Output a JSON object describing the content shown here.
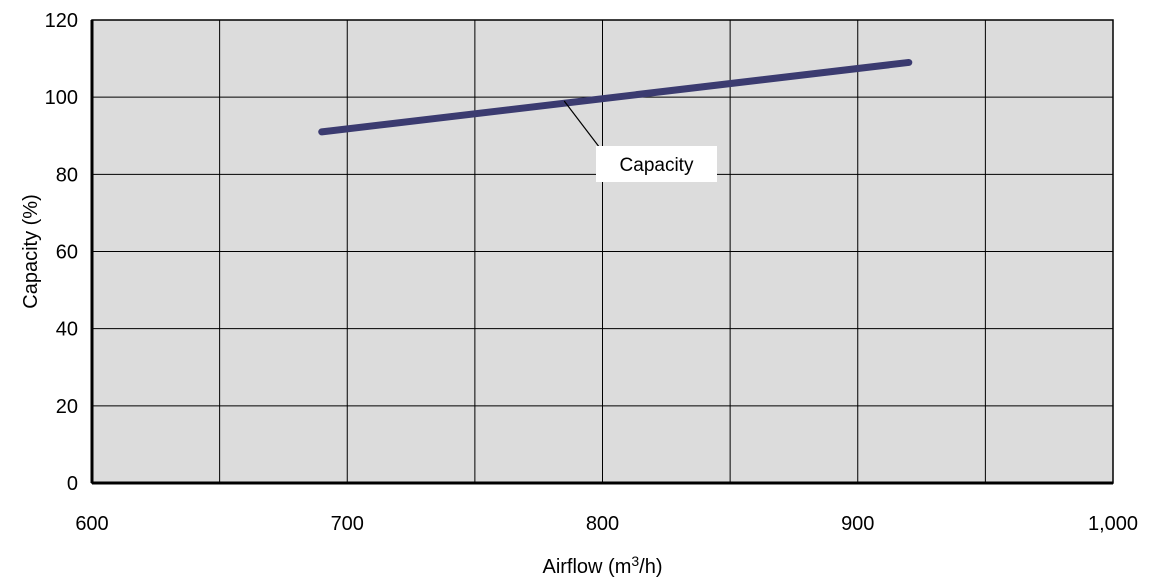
{
  "chart_data": {
    "type": "line",
    "title": "",
    "xlabel_main": "Airflow (m",
    "xlabel_sup": "3",
    "xlabel_tail": "/h)",
    "ylabel": "Capacity (%)",
    "xlim": [
      600,
      1000
    ],
    "ylim": [
      0,
      120
    ],
    "x_ticks": [
      600,
      700,
      800,
      900,
      1000
    ],
    "x_tick_labels": [
      "600",
      "700",
      "800",
      "900",
      "1,000"
    ],
    "x_grid": [
      600,
      650,
      700,
      750,
      800,
      850,
      900,
      950,
      1000
    ],
    "y_ticks": [
      0,
      20,
      40,
      60,
      80,
      100,
      120
    ],
    "y_tick_labels": [
      "0",
      "20",
      "40",
      "60",
      "80",
      "100",
      "120"
    ],
    "grid": true,
    "series": [
      {
        "name": "Capacity",
        "x": [
          690,
          920
        ],
        "y": [
          91,
          109
        ],
        "color": "#3b3b70"
      }
    ],
    "annotation": {
      "text": "Capacity",
      "anchor_x": 785,
      "anchor_y": 99
    },
    "plot_background": "#dcdcdc"
  }
}
